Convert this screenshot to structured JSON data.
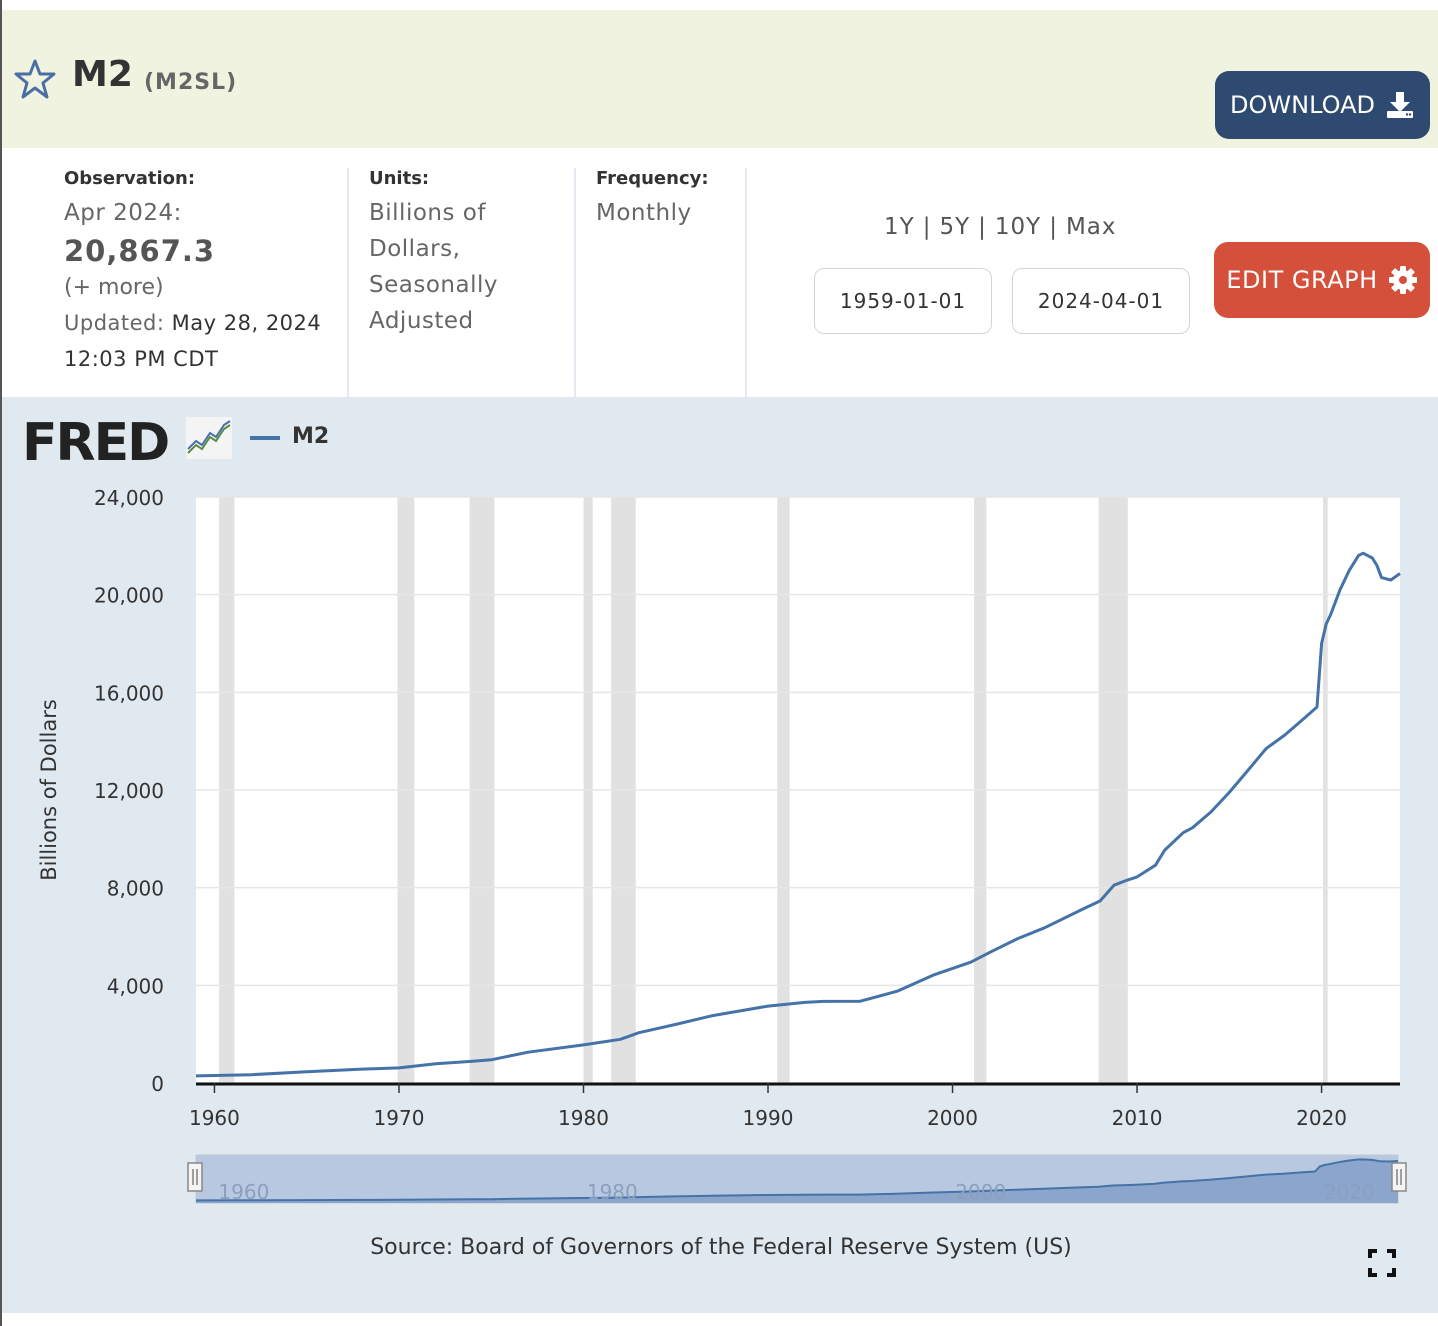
{
  "header": {
    "title": "M2",
    "series_id": "(M2SL)",
    "download_label": "DOWNLOAD"
  },
  "observation": {
    "label": "Observation:",
    "period": "Apr 2024:",
    "value": "20,867.3",
    "more": "(+ more)",
    "updated_label": "Updated:",
    "updated_date": "May 28, 2024",
    "updated_time": "12:03 PM CDT"
  },
  "units": {
    "label": "Units:",
    "lines": [
      "Billions of",
      "Dollars,",
      "Seasonally",
      "Adjusted"
    ]
  },
  "frequency": {
    "label": "Frequency:",
    "value": "Monthly"
  },
  "ranges": [
    "1Y",
    "5Y",
    "10Y",
    "Max"
  ],
  "range_separator": "|",
  "dates": {
    "start": "1959-01-01",
    "end": "2024-04-01"
  },
  "edit_graph_label": "EDIT GRAPH",
  "legend": {
    "logo": "FRED",
    "series": "M2"
  },
  "source": "Source: Board of Governors of the Federal Reserve System (US)",
  "colors": {
    "line": "#4572a7",
    "header_bg": "#f1f3e1",
    "download": "#2f4a70",
    "edit": "#d4503b",
    "panel": "#e1e9f0",
    "recession": "#e1e1e1"
  },
  "icons": {
    "star": "star-icon",
    "download": "download-icon",
    "gear": "gear-icon",
    "fullscreen": "fullscreen-icon",
    "fred_chart": "fred-chart-icon"
  },
  "chart_data": {
    "type": "line",
    "ylabel": "Billions of Dollars",
    "ylim": [
      0,
      24000
    ],
    "yticks": [
      0,
      4000,
      8000,
      12000,
      16000,
      20000,
      24000
    ],
    "ytick_labels": [
      "0",
      "4,000",
      "8,000",
      "12,000",
      "16,000",
      "20,000",
      "24,000"
    ],
    "xlim": [
      1959.0,
      2024.25
    ],
    "xticks": [
      1960,
      1970,
      1980,
      1990,
      2000,
      2010,
      2020
    ],
    "navigator_ticks": [
      1960,
      1980,
      2000,
      2020
    ],
    "grid": true,
    "recessions": [
      [
        1960.25,
        1961.08
      ],
      [
        1969.92,
        1970.83
      ],
      [
        1973.83,
        1975.17
      ],
      [
        1980.0,
        1980.5
      ],
      [
        1981.5,
        1982.83
      ],
      [
        1990.5,
        1991.17
      ],
      [
        2001.17,
        2001.83
      ],
      [
        2007.92,
        2009.5
      ],
      [
        2020.08,
        2020.33
      ]
    ],
    "series": [
      {
        "name": "M2",
        "x": [
          1959.0,
          1962.0,
          1965.0,
          1968.0,
          1970.0,
          1972.0,
          1974.0,
          1975.0,
          1977.0,
          1980.0,
          1982.0,
          1983.0,
          1985.0,
          1987.0,
          1990.0,
          1992.0,
          1993.0,
          1995.0,
          1997.0,
          1999.0,
          2001.0,
          2002.0,
          2003.5,
          2005.0,
          2007.0,
          2008.0,
          2008.75,
          2009.5,
          2010.0,
          2011.0,
          2011.5,
          2012.5,
          2013.0,
          2014.0,
          2015.0,
          2016.0,
          2017.0,
          2018.0,
          2019.0,
          2019.75,
          2020.0,
          2020.25,
          2020.5,
          2021.0,
          2021.5,
          2022.0,
          2022.25,
          2022.75,
          2023.0,
          2023.25,
          2023.75,
          2024.25
        ],
        "values": [
          290,
          340,
          460,
          570,
          620,
          790,
          890,
          950,
          1260,
          1560,
          1790,
          2060,
          2400,
          2760,
          3150,
          3300,
          3340,
          3350,
          3760,
          4430,
          4950,
          5340,
          5900,
          6360,
          7100,
          7460,
          8100,
          8320,
          8440,
          8920,
          9540,
          10250,
          10450,
          11100,
          11900,
          12800,
          13700,
          14250,
          14900,
          15400,
          18000,
          18800,
          19200,
          20200,
          21000,
          21600,
          21700,
          21500,
          21200,
          20700,
          20600,
          20867
        ]
      }
    ]
  }
}
